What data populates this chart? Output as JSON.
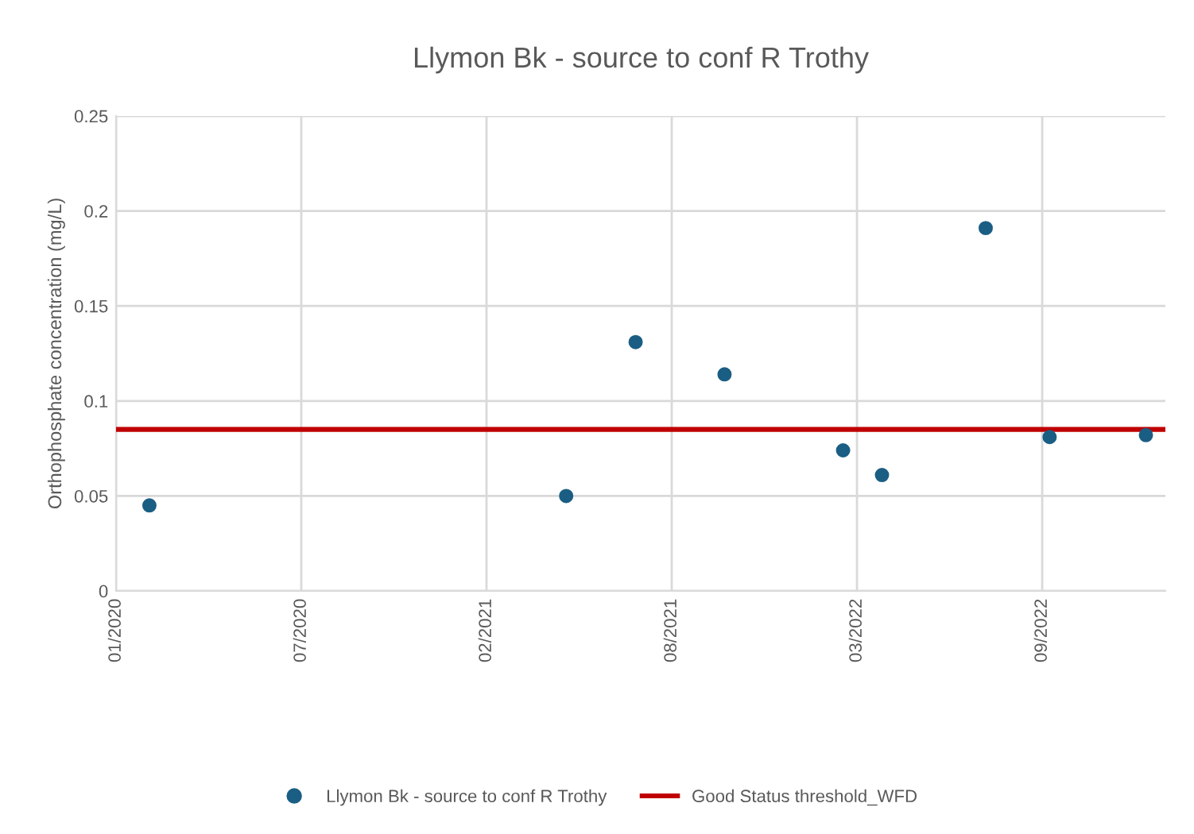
{
  "chart_data": {
    "type": "scatter",
    "title": "Llymon Bk - source to conf R Trothy",
    "ylabel": "Orthophosphate concentration (mg/L)",
    "series": [
      {
        "name": "Llymon Bk - source to conf R Trothy",
        "color": "#1b5e84",
        "x": [
          "2020-02-06",
          "2021-05-01",
          "2021-07-15",
          "2021-10-19",
          "2022-02-24",
          "2022-04-07",
          "2022-07-28",
          "2022-10-05",
          "2023-01-17"
        ],
        "values": [
          0.045,
          0.05,
          0.131,
          0.114,
          0.074,
          0.061,
          0.191,
          0.081,
          0.082
        ]
      }
    ],
    "ref_lines": [
      {
        "axis": "y",
        "value": 0.085,
        "label": "Good Status threshold_WFD",
        "color": "#c00000",
        "line_style": "solid"
      }
    ],
    "xlim": [
      "2020-01-01",
      "2023-02-07"
    ],
    "xticks": [
      {
        "value": "2020-01-01",
        "label": "01/2020"
      },
      {
        "value": "2020-07-19",
        "label": "07/2020"
      },
      {
        "value": "2021-02-04",
        "label": "02/2021"
      },
      {
        "value": "2021-08-23",
        "label": "08/2021"
      },
      {
        "value": "2022-03-11",
        "label": "03/2022"
      },
      {
        "value": "2022-09-27",
        "label": "09/2022"
      }
    ],
    "ylim": [
      0,
      0.25
    ],
    "yticks": [
      0,
      0.05,
      0.1,
      0.15,
      0.2,
      0.25
    ],
    "grid": true,
    "legend": "bottom",
    "marker": "circle"
  }
}
